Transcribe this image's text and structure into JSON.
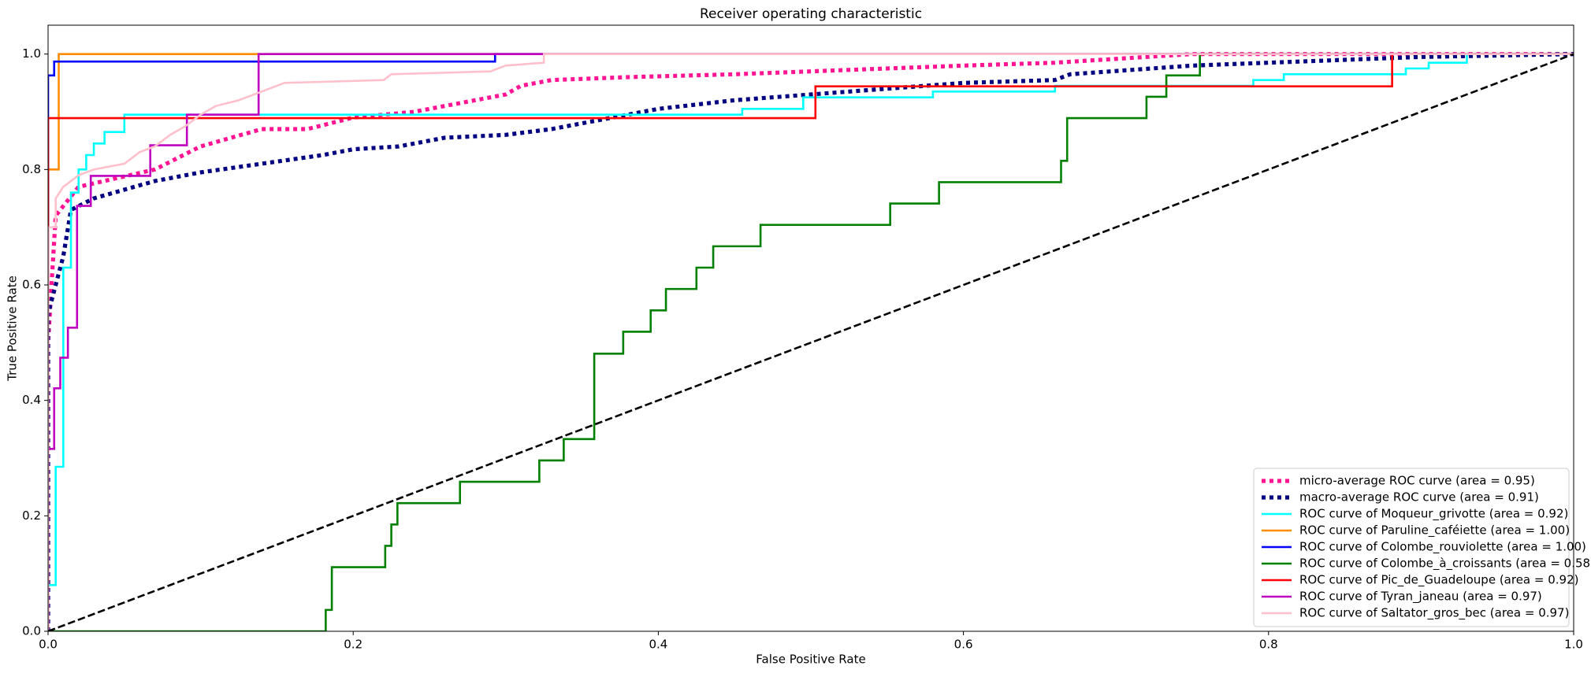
{
  "chart_data": {
    "type": "line",
    "title": "Receiver operating characteristic",
    "xlabel": "False Positive Rate",
    "ylabel": "True Positive Rate",
    "xlim": [
      0,
      1
    ],
    "ylim": [
      0,
      1.05
    ],
    "xticks": [
      {
        "value": 0,
        "label": "0.0"
      },
      0.2,
      0.4,
      0.6,
      0.8,
      {
        "value": 1,
        "label": "1.0"
      }
    ],
    "yticks": [
      {
        "value": 0,
        "label": "0.0"
      },
      0.2,
      0.4,
      0.6,
      0.8,
      {
        "value": 1,
        "label": "1.0"
      }
    ],
    "legend": "lower right",
    "series": [
      {
        "name": "micro-average ROC curve (area = 0.95)",
        "color": "deeppink",
        "linestyle": "dotted",
        "x": [
          0,
          0,
          0.005,
          0.02,
          0.07,
          0.1,
          0.14,
          0.17,
          0.2,
          0.24,
          0.27,
          0.3,
          0.31,
          0.33,
          0.38,
          0.45,
          0.5,
          0.55,
          0.6,
          0.66,
          0.72,
          0.75,
          1
        ],
        "values": [
          0,
          0.5,
          0.72,
          0.77,
          0.8,
          0.84,
          0.87,
          0.87,
          0.89,
          0.9,
          0.915,
          0.93,
          0.945,
          0.955,
          0.96,
          0.965,
          0.97,
          0.975,
          0.98,
          0.985,
          0.995,
          1,
          1
        ]
      },
      {
        "name": "macro-average ROC curve (area = 0.91)",
        "color": "navy",
        "linestyle": "dotted",
        "x": [
          0,
          0,
          0.01,
          0.015,
          0.03,
          0.07,
          0.1,
          0.14,
          0.18,
          0.2,
          0.23,
          0.26,
          0.3,
          0.33,
          0.35,
          0.4,
          0.45,
          0.5,
          0.6,
          0.66,
          0.67,
          0.75,
          0.85,
          0.9,
          1
        ],
        "values": [
          0,
          0.55,
          0.65,
          0.73,
          0.75,
          0.78,
          0.795,
          0.81,
          0.825,
          0.835,
          0.84,
          0.855,
          0.86,
          0.87,
          0.88,
          0.905,
          0.92,
          0.93,
          0.95,
          0.955,
          0.965,
          0.98,
          0.99,
          0.995,
          1
        ]
      },
      {
        "name": "ROC curve of Moqueur_grivotte (area = 0.92)",
        "color": "aqua",
        "linestyle": "solid",
        "x": [
          0,
          0,
          0.005,
          0.005,
          0.01,
          0.01,
          0.015,
          0.015,
          0.02,
          0.02,
          0.025,
          0.025,
          0.03,
          0.03,
          0.037,
          0.037,
          0.05,
          0.05,
          0.455,
          0.455,
          0.495,
          0.495,
          0.58,
          0.58,
          0.66,
          0.66,
          0.79,
          0.79,
          0.81,
          0.81,
          0.89,
          0.89,
          0.905,
          0.905,
          0.93,
          0.93,
          1
        ],
        "values": [
          0,
          0.08,
          0.08,
          0.285,
          0.285,
          0.63,
          0.63,
          0.76,
          0.76,
          0.8,
          0.8,
          0.825,
          0.825,
          0.845,
          0.845,
          0.865,
          0.865,
          0.895,
          0.895,
          0.905,
          0.905,
          0.925,
          0.925,
          0.935,
          0.935,
          0.945,
          0.945,
          0.955,
          0.955,
          0.965,
          0.965,
          0.975,
          0.975,
          0.985,
          0.985,
          1,
          1
        ]
      },
      {
        "name": "ROC curve of Paruline_caféiette (area = 1.00)",
        "color": "darkorange",
        "linestyle": "solid",
        "x": [
          0,
          0,
          0.007,
          0.007,
          1
        ],
        "values": [
          0,
          0.8,
          0.8,
          1,
          1
        ]
      },
      {
        "name": "ROC curve of Colombe_rouviolette (area = 1.00)",
        "color": "blue",
        "linestyle": "solid",
        "x": [
          0,
          0,
          0.004,
          0.004,
          0.293,
          0.293,
          1
        ],
        "values": [
          0,
          0.963,
          0.963,
          0.987,
          0.987,
          1,
          1
        ]
      },
      {
        "name": "ROC curve of Colombe_à_croissants (area = 0.58)",
        "color": "green",
        "linestyle": "solid",
        "x": [
          0,
          0.182,
          0.182,
          0.186,
          0.186,
          0.221,
          0.221,
          0.225,
          0.225,
          0.229,
          0.229,
          0.27,
          0.27,
          0.322,
          0.322,
          0.338,
          0.338,
          0.358,
          0.358,
          0.377,
          0.377,
          0.395,
          0.395,
          0.405,
          0.405,
          0.425,
          0.425,
          0.436,
          0.436,
          0.467,
          0.467,
          0.552,
          0.552,
          0.584,
          0.584,
          0.664,
          0.664,
          0.668,
          0.668,
          0.72,
          0.72,
          0.733,
          0.733,
          0.755,
          0.755,
          1
        ],
        "values": [
          0,
          0,
          0.037,
          0.037,
          0.111,
          0.111,
          0.148,
          0.148,
          0.185,
          0.185,
          0.222,
          0.222,
          0.259,
          0.259,
          0.296,
          0.296,
          0.333,
          0.333,
          0.481,
          0.481,
          0.519,
          0.519,
          0.556,
          0.556,
          0.593,
          0.593,
          0.63,
          0.63,
          0.667,
          0.667,
          0.704,
          0.704,
          0.741,
          0.741,
          0.778,
          0.778,
          0.815,
          0.815,
          0.889,
          0.889,
          0.926,
          0.926,
          0.963,
          0.963,
          1,
          1
        ]
      },
      {
        "name": "ROC curve of Pic_de_Guadeloupe (area = 0.92)",
        "color": "red",
        "linestyle": "solid",
        "x": [
          0,
          0,
          0.503,
          0.503,
          0.881,
          0.881,
          1
        ],
        "values": [
          0,
          0.889,
          0.889,
          0.944,
          0.944,
          1,
          1
        ]
      },
      {
        "name": "ROC curve of Tyran_janeau (area = 0.97)",
        "color": "#bf00bf",
        "linestyle": "solid",
        "x": [
          0,
          0,
          0.004,
          0.004,
          0.008,
          0.008,
          0.013,
          0.013,
          0.019,
          0.019,
          0.028,
          0.028,
          0.067,
          0.067,
          0.091,
          0.091,
          0.138,
          0.138,
          1
        ],
        "values": [
          0,
          0.316,
          0.316,
          0.421,
          0.421,
          0.474,
          0.474,
          0.526,
          0.526,
          0.737,
          0.737,
          0.789,
          0.789,
          0.842,
          0.842,
          0.895,
          0.895,
          1,
          1
        ]
      },
      {
        "name": "ROC curve of Saltator_gros_bec (area = 0.97)",
        "color": "pink",
        "linestyle": "solid",
        "x": [
          0,
          0,
          0.005,
          0.005,
          0.01,
          0.015,
          0.02,
          0.03,
          0.05,
          0.055,
          0.06,
          0.07,
          0.075,
          0.08,
          0.09,
          0.1,
          0.11,
          0.125,
          0.14,
          0.155,
          0.22,
          0.225,
          0.29,
          0.3,
          0.325,
          0.325,
          1
        ],
        "values": [
          0,
          0.7,
          0.7,
          0.75,
          0.77,
          0.78,
          0.79,
          0.8,
          0.81,
          0.82,
          0.83,
          0.84,
          0.85,
          0.86,
          0.875,
          0.895,
          0.91,
          0.92,
          0.935,
          0.95,
          0.955,
          0.965,
          0.97,
          0.98,
          0.985,
          1,
          1
        ]
      },
      {
        "color": "black",
        "linestyle": "dashed",
        "x": [
          0,
          1
        ],
        "values": [
          0,
          1
        ]
      }
    ]
  }
}
